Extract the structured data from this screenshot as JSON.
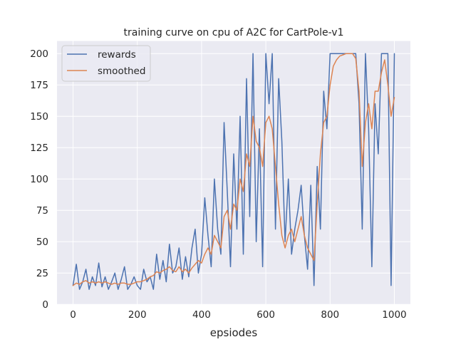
{
  "chart_data": {
    "type": "line",
    "title": "training curve on cpu of A2C for CartPole-v1",
    "xlabel": "epsiodes",
    "ylabel": "",
    "xlim": [
      -50,
      1050
    ],
    "ylim": [
      0,
      210
    ],
    "x_ticks": [
      0,
      200,
      400,
      600,
      800,
      1000
    ],
    "y_ticks": [
      0,
      25,
      50,
      75,
      100,
      125,
      150,
      175,
      200
    ],
    "grid": true,
    "legend_position": "top-left",
    "series": [
      {
        "name": "rewards",
        "color": "#4c72b0",
        "x": [
          0,
          10,
          20,
          30,
          40,
          50,
          60,
          70,
          80,
          90,
          100,
          110,
          120,
          130,
          140,
          150,
          160,
          170,
          180,
          190,
          200,
          210,
          220,
          230,
          240,
          250,
          260,
          270,
          280,
          290,
          300,
          310,
          320,
          330,
          340,
          350,
          360,
          370,
          380,
          390,
          400,
          410,
          420,
          430,
          440,
          450,
          460,
          470,
          480,
          490,
          500,
          510,
          520,
          530,
          540,
          550,
          560,
          570,
          580,
          590,
          600,
          610,
          620,
          630,
          640,
          650,
          660,
          670,
          680,
          690,
          700,
          710,
          720,
          730,
          740,
          750,
          760,
          770,
          780,
          790,
          800,
          810,
          820,
          830,
          840,
          850,
          860,
          870,
          880,
          890,
          900,
          910,
          920,
          930,
          940,
          950,
          960,
          970,
          980,
          990,
          1000
        ],
        "values": [
          15,
          32,
          12,
          18,
          28,
          12,
          22,
          15,
          33,
          14,
          22,
          12,
          18,
          25,
          12,
          20,
          30,
          12,
          16,
          22,
          15,
          12,
          28,
          18,
          22,
          12,
          40,
          20,
          35,
          18,
          48,
          25,
          30,
          45,
          20,
          38,
          22,
          45,
          60,
          25,
          40,
          85,
          55,
          30,
          100,
          60,
          40,
          145,
          90,
          30,
          120,
          60,
          150,
          40,
          180,
          70,
          200,
          50,
          140,
          30,
          200,
          160,
          200,
          60,
          180,
          130,
          50,
          100,
          40,
          60,
          75,
          95,
          55,
          28,
          95,
          15,
          110,
          60,
          170,
          140,
          200,
          200,
          200,
          200,
          200,
          200,
          200,
          200,
          200,
          160,
          60,
          200,
          140,
          30,
          160,
          120,
          200,
          200,
          200,
          15,
          200
        ]
      },
      {
        "name": "smoothed",
        "color": "#dd8452",
        "x": [
          0,
          10,
          20,
          30,
          40,
          50,
          60,
          70,
          80,
          90,
          100,
          110,
          120,
          130,
          140,
          150,
          160,
          170,
          180,
          190,
          200,
          210,
          220,
          230,
          240,
          250,
          260,
          270,
          280,
          290,
          300,
          310,
          320,
          330,
          340,
          350,
          360,
          370,
          380,
          390,
          400,
          410,
          420,
          430,
          440,
          450,
          460,
          470,
          480,
          490,
          500,
          510,
          520,
          530,
          540,
          550,
          560,
          570,
          580,
          590,
          600,
          610,
          620,
          630,
          640,
          650,
          660,
          670,
          680,
          690,
          700,
          710,
          720,
          730,
          740,
          750,
          760,
          770,
          780,
          790,
          800,
          810,
          820,
          830,
          840,
          850,
          860,
          870,
          880,
          890,
          900,
          910,
          920,
          930,
          940,
          950,
          960,
          970,
          980,
          990,
          1000
        ],
        "values": [
          15,
          17,
          16,
          18,
          19,
          17,
          18,
          17,
          18,
          17,
          18,
          17,
          16,
          17,
          16,
          17,
          17,
          16,
          16,
          17,
          18,
          18,
          19,
          20,
          22,
          23,
          26,
          25,
          27,
          28,
          30,
          27,
          26,
          30,
          26,
          28,
          25,
          29,
          32,
          35,
          33,
          40,
          45,
          40,
          55,
          50,
          45,
          70,
          75,
          60,
          80,
          75,
          100,
          90,
          120,
          110,
          150,
          130,
          125,
          110,
          145,
          150,
          140,
          110,
          80,
          55,
          45,
          55,
          60,
          50,
          60,
          70,
          55,
          45,
          40,
          35,
          80,
          120,
          145,
          150,
          175,
          190,
          195,
          198,
          199,
          200,
          200,
          200,
          196,
          170,
          110,
          145,
          160,
          140,
          170,
          170,
          185,
          195,
          175,
          150,
          165
        ]
      }
    ]
  }
}
